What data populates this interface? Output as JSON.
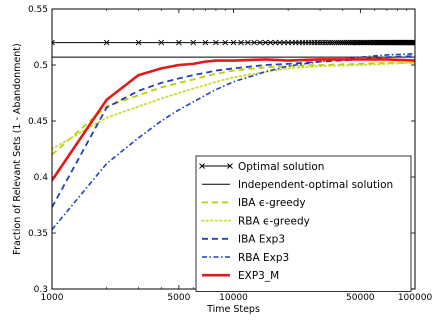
{
  "chart_data": {
    "type": "line",
    "xscale": "log",
    "xlabel": "Time Steps",
    "ylabel": "Fraction of Relevant Sets (1 - Abandonment)",
    "xlim": [
      1000,
      100000
    ],
    "ylim": [
      0.3,
      0.55
    ],
    "xticks": [
      1000,
      5000,
      10000,
      50000,
      100000
    ],
    "xtick_labels": [
      "1000",
      "5000",
      "10000",
      "50000",
      "100000"
    ],
    "yticks": [
      0.3,
      0.35,
      0.4,
      0.45,
      0.5,
      0.55
    ],
    "ytick_labels": [
      "0.3",
      "0.35",
      "0.4",
      "0.45",
      "0.5",
      "0.55"
    ],
    "legend_position": "bottom-right",
    "series": [
      {
        "name": "Optimal solution",
        "color": "#000000",
        "style": "x-markers",
        "x": [
          1000,
          100000
        ],
        "y": [
          0.52,
          0.52
        ]
      },
      {
        "name": "Independent-optimal solution",
        "color": "#000000",
        "style": "solid-thin",
        "x": [
          1000,
          100000
        ],
        "y": [
          0.507,
          0.507
        ]
      },
      {
        "name": "IBA ϵ-greedy",
        "color": "#b8d200",
        "style": "dashed",
        "x": [
          1000,
          2000,
          3000,
          4000,
          5000,
          6000,
          7000,
          8000,
          10000,
          15000,
          20000,
          30000,
          50000,
          70000,
          100000
        ],
        "y": [
          0.42,
          0.463,
          0.473,
          0.48,
          0.484,
          0.487,
          0.49,
          0.492,
          0.495,
          0.498,
          0.499,
          0.5,
          0.501,
          0.502,
          0.502
        ]
      },
      {
        "name": "RBA ϵ-greedy",
        "color": "#c8dc2c",
        "style": "dotted",
        "x": [
          1000,
          2000,
          3000,
          4000,
          5000,
          6000,
          7000,
          8000,
          10000,
          15000,
          20000,
          30000,
          50000,
          70000,
          100000
        ],
        "y": [
          0.425,
          0.453,
          0.463,
          0.47,
          0.475,
          0.479,
          0.482,
          0.485,
          0.489,
          0.494,
          0.497,
          0.499,
          0.5,
          0.501,
          0.502
        ]
      },
      {
        "name": "IBA Exp3",
        "color": "#1f3fbf",
        "style": "dashed",
        "x": [
          1000,
          2000,
          3000,
          4000,
          5000,
          6000,
          7000,
          8000,
          10000,
          15000,
          20000,
          30000,
          50000,
          70000,
          100000
        ],
        "y": [
          0.373,
          0.462,
          0.477,
          0.484,
          0.488,
          0.491,
          0.493,
          0.495,
          0.497,
          0.5,
          0.501,
          0.503,
          0.505,
          0.507,
          0.508
        ]
      },
      {
        "name": "RBA Exp3",
        "color": "#1f3fbf",
        "style": "dash-dot",
        "x": [
          1000,
          2000,
          3000,
          4000,
          5000,
          6000,
          7000,
          8000,
          10000,
          15000,
          20000,
          30000,
          50000,
          70000,
          100000
        ],
        "y": [
          0.353,
          0.412,
          0.435,
          0.45,
          0.46,
          0.467,
          0.473,
          0.478,
          0.485,
          0.494,
          0.499,
          0.503,
          0.507,
          0.509,
          0.51
        ]
      },
      {
        "name": "EXP3_M",
        "color": "#e01a1a",
        "style": "solid-thick",
        "x": [
          1000,
          2000,
          3000,
          4000,
          5000,
          6000,
          7000,
          8000,
          10000,
          15000,
          20000,
          30000,
          50000,
          70000,
          100000
        ],
        "y": [
          0.397,
          0.469,
          0.491,
          0.497,
          0.5,
          0.501,
          0.503,
          0.504,
          0.504,
          0.505,
          0.504,
          0.505,
          0.505,
          0.505,
          0.504
        ]
      }
    ]
  }
}
